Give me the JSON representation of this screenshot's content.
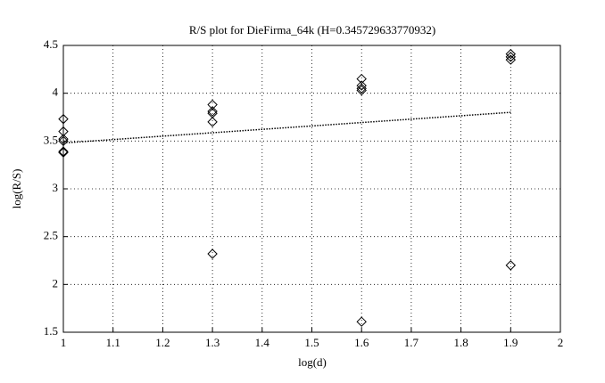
{
  "chart_data": {
    "type": "scatter",
    "title": "R/S plot for DieFirma_64k (H=0.345729633770932)",
    "x_label": "log(d)",
    "y_label": "log(R/S)",
    "xlim": [
      1,
      2
    ],
    "xticks": [
      1,
      1.1,
      1.2,
      1.3,
      1.4,
      1.5,
      1.6,
      1.7,
      1.8,
      1.9,
      2
    ],
    "ylim": [
      1.5,
      4.5
    ],
    "yticks": [
      1.5,
      2,
      2.5,
      3,
      3.5,
      4,
      4.5
    ],
    "grid": true,
    "series": [
      {
        "type": "scatter",
        "marker": "diamond",
        "color": "#000000",
        "x": [
          1,
          1,
          1,
          1,
          1,
          1,
          1.3,
          1.3,
          1.3,
          1.3,
          1.3,
          1.6,
          1.6,
          1.6,
          1.6,
          1.6,
          1.9,
          1.9,
          1.9,
          1.9
        ],
        "values": [
          3.73,
          3.6,
          3.52,
          3.5,
          3.39,
          3.38,
          3.88,
          3.81,
          3.79,
          3.7,
          2.32,
          4.15,
          4.08,
          4.05,
          4.03,
          1.61,
          4.41,
          4.38,
          4.35,
          2.2
        ]
      },
      {
        "type": "line",
        "dash": "dotted",
        "color": "#000000",
        "x": [
          1,
          1.9
        ],
        "values": [
          3.48,
          3.8
        ]
      }
    ]
  }
}
